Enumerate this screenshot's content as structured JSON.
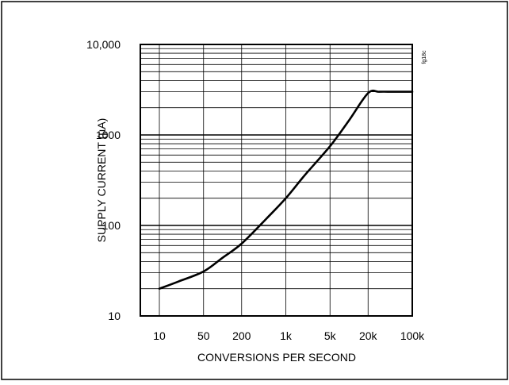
{
  "chart_data": {
    "type": "line",
    "title": "",
    "xlabel": "CONVERSIONS PER SECOND",
    "ylabel": "SUPPLY CURRENT (µA)",
    "figure_code": "fg18c",
    "x_scale": "log",
    "y_scale": "log",
    "xlim": [
      5,
      100000
    ],
    "ylim": [
      10,
      10000
    ],
    "x_ticks": [
      10,
      50,
      200,
      1000,
      5000,
      20000,
      100000
    ],
    "x_tick_labels": [
      "10",
      "50",
      "200",
      "1k",
      "5k",
      "20k",
      "100k"
    ],
    "y_ticks": [
      10,
      100,
      1000,
      10000
    ],
    "y_tick_labels": [
      "10",
      "100",
      "1000",
      "10,000"
    ],
    "grid": true,
    "series": [
      {
        "name": "",
        "x": [
          10,
          20,
          50,
          100,
          200,
          500,
          1000,
          2000,
          5000,
          10000,
          20000,
          30000,
          50000,
          100000
        ],
        "y": [
          20,
          24,
          31,
          44,
          63,
          120,
          200,
          360,
          750,
          1450,
          2900,
          3000,
          3000,
          3000
        ]
      }
    ]
  },
  "colors": {
    "line": "#000000",
    "grid": "#000000",
    "background": "#ffffff"
  }
}
